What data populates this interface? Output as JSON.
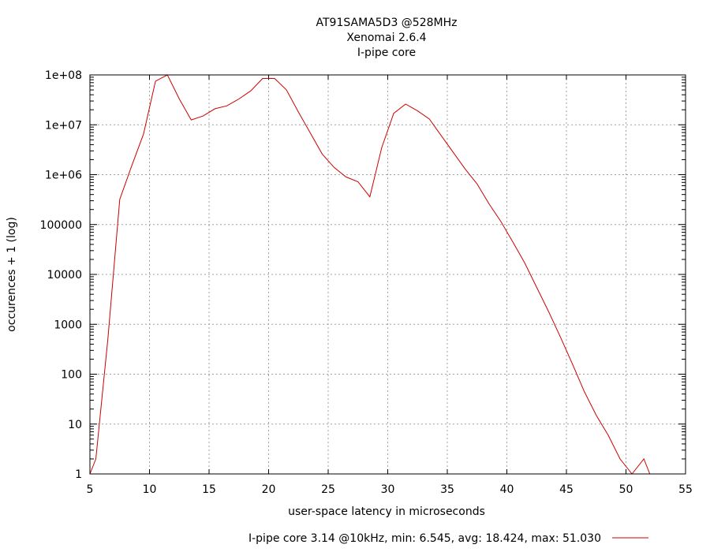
{
  "chart_data": {
    "type": "line",
    "title_lines": [
      "AT91SAMA5D3 @528MHz",
      "Xenomai 2.6.4",
      "I-pipe core"
    ],
    "xlabel": "user-space latency in microseconds",
    "ylabel": "occurences + 1 (log)",
    "xlim": [
      5,
      55
    ],
    "ylim": [
      1,
      100000000
    ],
    "y_scale": "log",
    "grid": true,
    "legend_position": "bottom-center",
    "x_ticks": [
      5,
      10,
      15,
      20,
      25,
      30,
      35,
      40,
      45,
      50,
      55
    ],
    "x_tick_labels": [
      "5",
      "10",
      "15",
      "20",
      "25",
      "30",
      "35",
      "40",
      "45",
      "50",
      "55"
    ],
    "y_ticks": [
      1,
      10,
      100,
      1000,
      10000,
      100000,
      1000000,
      10000000,
      100000000
    ],
    "y_tick_labels": [
      "1",
      "10",
      "100",
      "1000",
      "10000",
      "100000",
      "1e+06",
      "1e+07",
      "1e+08"
    ],
    "series": [
      {
        "name": "I-pipe core 3.14 @10kHz, min: 6.545, avg: 18.424, max: 51.030",
        "color": "#cc0000",
        "x": [
          5,
          5.5,
          6.5,
          7.5,
          8.5,
          9.5,
          10.5,
          11.5,
          12.5,
          13.5,
          14.5,
          15.5,
          16.5,
          17.5,
          18.5,
          19.5,
          20.5,
          21.5,
          22.5,
          23.5,
          24.5,
          25.5,
          26.5,
          27.5,
          28.5,
          29.5,
          30.5,
          31.5,
          32.5,
          33.5,
          34.5,
          35.5,
          36.5,
          37.5,
          38.5,
          39.5,
          40.5,
          41.5,
          42.5,
          43.5,
          44.5,
          45.5,
          46.5,
          47.5,
          48.5,
          49.5,
          50.5,
          51.5,
          52
        ],
        "y": [
          1,
          2,
          500,
          320000,
          1500000,
          6500000,
          75000000,
          100000000,
          33000000,
          12500000,
          15000000,
          21000000,
          24000000,
          33000000,
          48000000,
          85000000,
          85000000,
          50000000,
          18000000,
          6800000,
          2600000,
          1400000,
          900000,
          720000,
          360000,
          3500000,
          17000000,
          26000000,
          19000000,
          13000000,
          6000000,
          2800000,
          1300000,
          650000,
          260000,
          115000,
          45000,
          17000,
          5500,
          1800,
          550,
          160,
          45,
          15,
          6,
          2,
          1,
          2,
          1
        ]
      }
    ]
  }
}
